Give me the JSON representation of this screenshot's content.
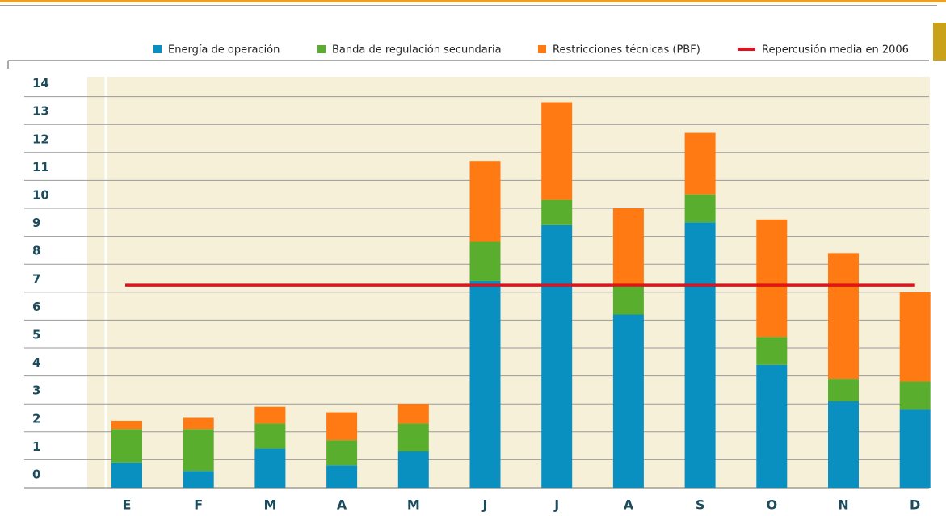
{
  "chart_data": {
    "type": "stacked_bar",
    "categories": [
      "E",
      "F",
      "M",
      "A",
      "M",
      "J",
      "J",
      "A",
      "S",
      "O",
      "N",
      "D"
    ],
    "series": [
      {
        "name": "Energía de operación",
        "color": "#0a8fc1",
        "values": [
          0.9,
          0.6,
          1.4,
          0.8,
          1.3,
          7.4,
          9.4,
          6.2,
          9.5,
          4.4,
          3.1,
          2.8
        ]
      },
      {
        "name": "Banda de regulación secundaria",
        "color": "#5aae2e",
        "values": [
          1.2,
          1.5,
          0.9,
          0.9,
          1.0,
          1.4,
          0.9,
          1.0,
          1.0,
          1.0,
          0.8,
          1.0
        ]
      },
      {
        "name": "Restricciones técnicas (PBF)",
        "color": "#ff7a12",
        "values": [
          0.3,
          0.4,
          0.6,
          1.0,
          0.7,
          2.9,
          3.5,
          2.8,
          2.2,
          4.2,
          4.5,
          3.2
        ]
      }
    ],
    "average_line": {
      "name": "Repercusión media en 2006",
      "color": "#e3101e",
      "value": 7.25
    },
    "ylim": [
      0,
      14
    ],
    "yticks": [
      0,
      1,
      2,
      3,
      4,
      5,
      6,
      7,
      8,
      9,
      10,
      11,
      12,
      13,
      14
    ],
    "grid": true
  }
}
